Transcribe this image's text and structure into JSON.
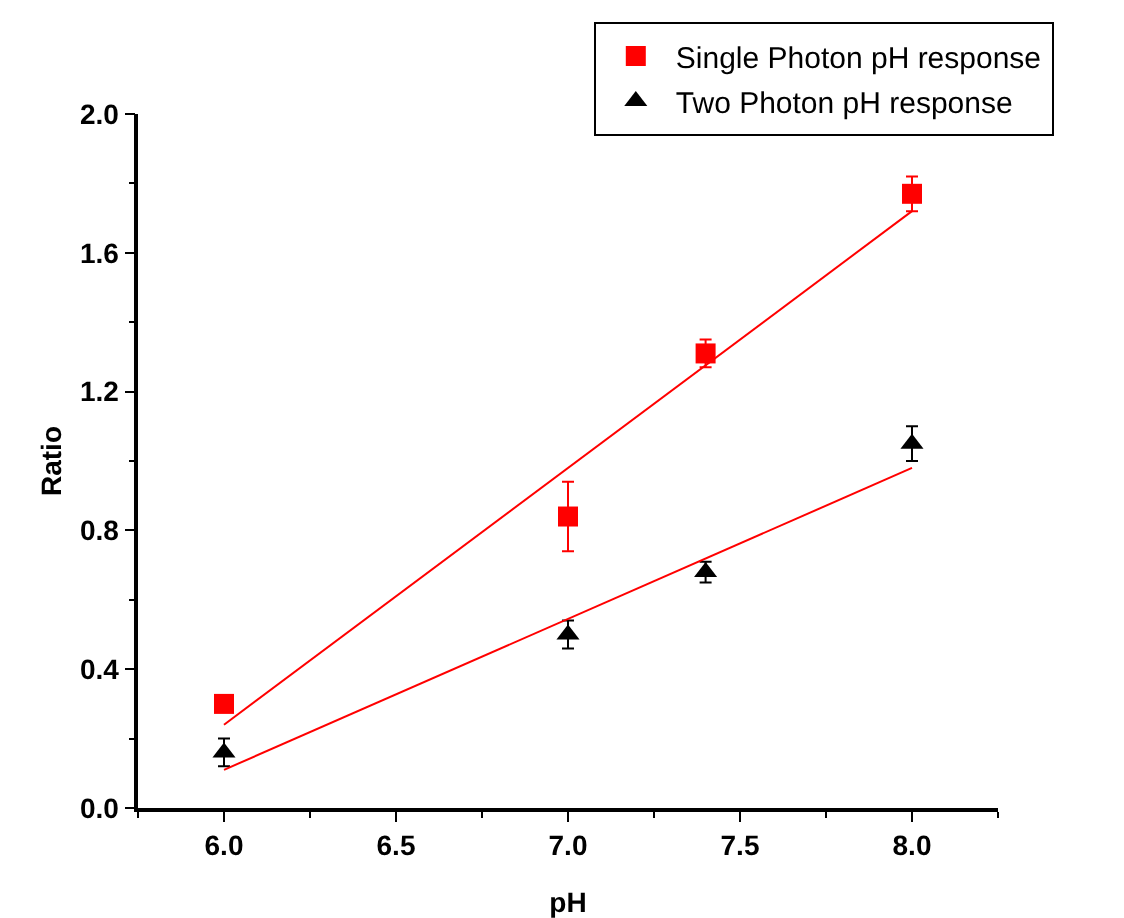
{
  "chart_data": {
    "type": "scatter",
    "xlabel": "pH",
    "ylabel": "Ratio",
    "xlim": [
      5.75,
      8.25
    ],
    "xticks": [
      {
        "value": 6,
        "label": "6.0"
      },
      6.5,
      {
        "value": 7,
        "label": "7.0"
      },
      7.5,
      {
        "value": 8,
        "label": "8.0"
      }
    ],
    "ylim": [
      0,
      2.0
    ],
    "yticks": [
      {
        "value": 0,
        "label": "0.0"
      },
      0.4,
      0.8,
      1.2,
      1.6,
      {
        "value": 2,
        "label": "2.0"
      }
    ],
    "grid": false,
    "legend": "top right",
    "series": [
      {
        "name": "Single Photon pH response",
        "color": "#ff0000",
        "marker": "square",
        "x": [
          6.0,
          7.0,
          7.4,
          8.0
        ],
        "values": [
          0.3,
          0.84,
          1.31,
          1.77
        ],
        "errors": [
          null,
          0.1,
          0.04,
          0.05
        ]
      },
      {
        "name": "Two Photon pH response",
        "color": "#000000",
        "marker": "triangle",
        "x": [
          6.0,
          7.0,
          7.4,
          8.0
        ],
        "values": [
          0.16,
          0.5,
          0.68,
          1.05
        ],
        "errors": [
          0.04,
          0.04,
          0.03,
          0.05
        ]
      },
      {
        "type": "line",
        "color": "#ff0000",
        "x": [
          6.0,
          8.0
        ],
        "values": [
          0.24,
          1.72
        ]
      },
      {
        "type": "line",
        "color": "#ff0000",
        "x": [
          6.0,
          8.0
        ],
        "values": [
          0.11,
          0.98
        ]
      }
    ]
  }
}
